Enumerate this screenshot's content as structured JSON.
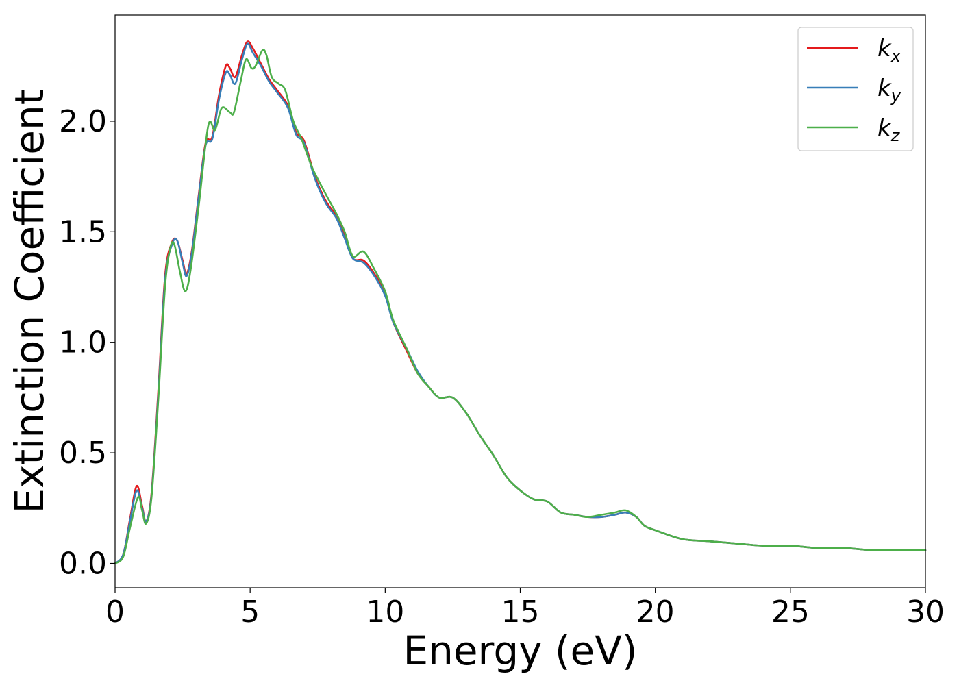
{
  "chart_data": {
    "type": "line",
    "title": "",
    "xlabel": "Energy (eV)",
    "ylabel": "Extinction Coefficient",
    "xlim": [
      0,
      30
    ],
    "ylim": [
      -0.11,
      2.48
    ],
    "xticks": [
      0,
      5,
      10,
      15,
      20,
      25,
      30
    ],
    "xtick_labels": [
      "0",
      "5",
      "10",
      "15",
      "20",
      "25",
      "30"
    ],
    "yticks": [
      0.0,
      0.5,
      1.0,
      1.5,
      2.0
    ],
    "ytick_labels": [
      "0.0",
      "0.5",
      "1.0",
      "1.5",
      "2.0"
    ],
    "grid": false,
    "legend_position": "top-right",
    "series": [
      {
        "name": "kx",
        "base": "k",
        "sub": "x",
        "color": "#e41a1c",
        "points": [
          [
            0,
            0
          ],
          [
            0.3,
            0.04
          ],
          [
            0.55,
            0.2
          ],
          [
            0.8,
            0.35
          ],
          [
            1.0,
            0.26
          ],
          [
            1.15,
            0.19
          ],
          [
            1.35,
            0.32
          ],
          [
            1.6,
            0.78
          ],
          [
            1.85,
            1.3
          ],
          [
            2.1,
            1.45
          ],
          [
            2.3,
            1.46
          ],
          [
            2.5,
            1.37
          ],
          [
            2.65,
            1.31
          ],
          [
            2.85,
            1.42
          ],
          [
            3.1,
            1.67
          ],
          [
            3.35,
            1.9
          ],
          [
            3.6,
            1.93
          ],
          [
            3.85,
            2.12
          ],
          [
            4.1,
            2.25
          ],
          [
            4.25,
            2.24
          ],
          [
            4.45,
            2.2
          ],
          [
            4.7,
            2.3
          ],
          [
            4.9,
            2.36
          ],
          [
            5.1,
            2.33
          ],
          [
            5.4,
            2.26
          ],
          [
            5.7,
            2.19
          ],
          [
            6.0,
            2.14
          ],
          [
            6.4,
            2.07
          ],
          [
            6.7,
            1.95
          ],
          [
            7.0,
            1.91
          ],
          [
            7.4,
            1.75
          ],
          [
            7.8,
            1.64
          ],
          [
            8.2,
            1.57
          ],
          [
            8.5,
            1.48
          ],
          [
            8.8,
            1.38
          ],
          [
            9.2,
            1.37
          ],
          [
            9.6,
            1.31
          ],
          [
            10.0,
            1.22
          ],
          [
            10.3,
            1.09
          ],
          [
            10.8,
            0.96
          ],
          [
            11.2,
            0.86
          ],
          [
            11.6,
            0.8
          ],
          [
            12.0,
            0.75
          ],
          [
            12.5,
            0.75
          ],
          [
            13.0,
            0.68
          ],
          [
            13.5,
            0.58
          ],
          [
            14.0,
            0.49
          ],
          [
            14.5,
            0.39
          ],
          [
            15.0,
            0.33
          ],
          [
            15.5,
            0.29
          ],
          [
            16.0,
            0.28
          ],
          [
            16.5,
            0.23
          ],
          [
            17.0,
            0.22
          ],
          [
            17.5,
            0.21
          ],
          [
            18.0,
            0.21
          ],
          [
            18.5,
            0.22
          ],
          [
            18.9,
            0.23
          ],
          [
            19.3,
            0.21
          ],
          [
            19.6,
            0.17
          ],
          [
            20.0,
            0.15
          ],
          [
            21.0,
            0.11
          ],
          [
            22.0,
            0.1
          ],
          [
            23.0,
            0.09
          ],
          [
            24.0,
            0.08
          ],
          [
            25.0,
            0.08
          ],
          [
            26.0,
            0.07
          ],
          [
            27.0,
            0.07
          ],
          [
            28.0,
            0.06
          ],
          [
            29.0,
            0.06
          ],
          [
            30.0,
            0.06
          ]
        ]
      },
      {
        "name": "ky",
        "base": "k",
        "sub": "y",
        "color": "#377eb8",
        "points": [
          [
            0,
            0
          ],
          [
            0.3,
            0.04
          ],
          [
            0.55,
            0.19
          ],
          [
            0.8,
            0.33
          ],
          [
            1.0,
            0.25
          ],
          [
            1.15,
            0.19
          ],
          [
            1.35,
            0.31
          ],
          [
            1.6,
            0.76
          ],
          [
            1.85,
            1.28
          ],
          [
            2.1,
            1.44
          ],
          [
            2.3,
            1.46
          ],
          [
            2.5,
            1.36
          ],
          [
            2.65,
            1.3
          ],
          [
            2.85,
            1.41
          ],
          [
            3.1,
            1.66
          ],
          [
            3.35,
            1.89
          ],
          [
            3.6,
            1.92
          ],
          [
            3.85,
            2.1
          ],
          [
            4.1,
            2.22
          ],
          [
            4.25,
            2.21
          ],
          [
            4.45,
            2.17
          ],
          [
            4.7,
            2.28
          ],
          [
            4.9,
            2.35
          ],
          [
            5.1,
            2.31
          ],
          [
            5.4,
            2.25
          ],
          [
            5.7,
            2.18
          ],
          [
            6.0,
            2.13
          ],
          [
            6.4,
            2.06
          ],
          [
            6.7,
            1.94
          ],
          [
            7.0,
            1.9
          ],
          [
            7.4,
            1.74
          ],
          [
            7.8,
            1.63
          ],
          [
            8.2,
            1.56
          ],
          [
            8.5,
            1.47
          ],
          [
            8.8,
            1.38
          ],
          [
            9.2,
            1.36
          ],
          [
            9.6,
            1.3
          ],
          [
            10.0,
            1.21
          ],
          [
            10.3,
            1.09
          ],
          [
            10.8,
            0.97
          ],
          [
            11.2,
            0.87
          ],
          [
            11.6,
            0.8
          ],
          [
            12.0,
            0.75
          ],
          [
            12.5,
            0.75
          ],
          [
            13.0,
            0.68
          ],
          [
            13.5,
            0.58
          ],
          [
            14.0,
            0.49
          ],
          [
            14.5,
            0.39
          ],
          [
            15.0,
            0.33
          ],
          [
            15.5,
            0.29
          ],
          [
            16.0,
            0.28
          ],
          [
            16.5,
            0.23
          ],
          [
            17.0,
            0.22
          ],
          [
            17.5,
            0.21
          ],
          [
            18.0,
            0.21
          ],
          [
            18.5,
            0.22
          ],
          [
            18.9,
            0.23
          ],
          [
            19.3,
            0.21
          ],
          [
            19.6,
            0.17
          ],
          [
            20.0,
            0.15
          ],
          [
            21.0,
            0.11
          ],
          [
            22.0,
            0.1
          ],
          [
            23.0,
            0.09
          ],
          [
            24.0,
            0.08
          ],
          [
            25.0,
            0.08
          ],
          [
            26.0,
            0.07
          ],
          [
            27.0,
            0.07
          ],
          [
            28.0,
            0.06
          ],
          [
            29.0,
            0.06
          ],
          [
            30.0,
            0.06
          ]
        ]
      },
      {
        "name": "kz",
        "base": "k",
        "sub": "z",
        "color": "#4daf4a",
        "points": [
          [
            0,
            0
          ],
          [
            0.3,
            0.03
          ],
          [
            0.55,
            0.16
          ],
          [
            0.85,
            0.3
          ],
          [
            1.0,
            0.24
          ],
          [
            1.15,
            0.18
          ],
          [
            1.35,
            0.3
          ],
          [
            1.6,
            0.74
          ],
          [
            1.85,
            1.25
          ],
          [
            2.05,
            1.43
          ],
          [
            2.2,
            1.44
          ],
          [
            2.4,
            1.32
          ],
          [
            2.6,
            1.23
          ],
          [
            2.8,
            1.33
          ],
          [
            3.1,
            1.62
          ],
          [
            3.45,
            1.98
          ],
          [
            3.7,
            1.96
          ],
          [
            3.95,
            2.06
          ],
          [
            4.25,
            2.04
          ],
          [
            4.4,
            2.04
          ],
          [
            4.65,
            2.18
          ],
          [
            4.85,
            2.28
          ],
          [
            5.05,
            2.24
          ],
          [
            5.2,
            2.25
          ],
          [
            5.45,
            2.32
          ],
          [
            5.6,
            2.3
          ],
          [
            5.8,
            2.2
          ],
          [
            6.05,
            2.17
          ],
          [
            6.3,
            2.14
          ],
          [
            6.6,
            2.0
          ],
          [
            6.9,
            1.92
          ],
          [
            7.3,
            1.79
          ],
          [
            7.8,
            1.67
          ],
          [
            8.2,
            1.58
          ],
          [
            8.5,
            1.5
          ],
          [
            8.8,
            1.39
          ],
          [
            9.2,
            1.41
          ],
          [
            9.6,
            1.33
          ],
          [
            10.0,
            1.23
          ],
          [
            10.3,
            1.1
          ],
          [
            10.8,
            0.97
          ],
          [
            11.2,
            0.86
          ],
          [
            11.6,
            0.8
          ],
          [
            12.0,
            0.75
          ],
          [
            12.5,
            0.75
          ],
          [
            13.0,
            0.68
          ],
          [
            13.5,
            0.58
          ],
          [
            14.0,
            0.49
          ],
          [
            14.5,
            0.39
          ],
          [
            15.0,
            0.33
          ],
          [
            15.5,
            0.29
          ],
          [
            16.0,
            0.28
          ],
          [
            16.5,
            0.23
          ],
          [
            17.0,
            0.22
          ],
          [
            17.5,
            0.21
          ],
          [
            18.0,
            0.22
          ],
          [
            18.5,
            0.23
          ],
          [
            18.9,
            0.24
          ],
          [
            19.3,
            0.21
          ],
          [
            19.6,
            0.17
          ],
          [
            20.0,
            0.15
          ],
          [
            21.0,
            0.11
          ],
          [
            22.0,
            0.1
          ],
          [
            23.0,
            0.09
          ],
          [
            24.0,
            0.08
          ],
          [
            25.0,
            0.08
          ],
          [
            26.0,
            0.07
          ],
          [
            27.0,
            0.07
          ],
          [
            28.0,
            0.06
          ],
          [
            29.0,
            0.06
          ],
          [
            30.0,
            0.06
          ]
        ]
      }
    ]
  }
}
